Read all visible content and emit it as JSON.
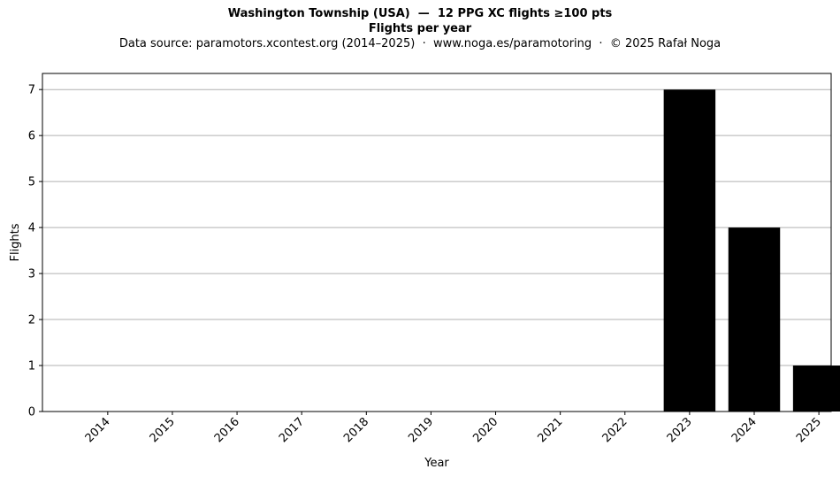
{
  "header": {
    "title_line1": "Washington Township (USA)  —  12 PPG XC flights ≥100 pts",
    "title_line2": "Flights per year",
    "source": "Data source: paramotors.xcontest.org (2014–2025)  ·  www.noga.es/paramotoring  ·  © 2025 Rafał Noga"
  },
  "chart_data": {
    "type": "bar",
    "title": "Flights per year",
    "xlabel": "Year",
    "ylabel": "Flights",
    "categories": [
      "2014",
      "2015",
      "2016",
      "2017",
      "2018",
      "2019",
      "2020",
      "2021",
      "2022",
      "2023",
      "2024",
      "2025"
    ],
    "values": [
      0,
      0,
      0,
      0,
      0,
      0,
      0,
      0,
      0,
      7,
      4,
      1
    ],
    "ylim": [
      0,
      7.35
    ],
    "yticks": [
      0,
      1,
      2,
      3,
      4,
      5,
      6,
      7
    ],
    "grid": "horizontal",
    "bar_color": "#000000",
    "grid_color": "#b0b0b0"
  }
}
